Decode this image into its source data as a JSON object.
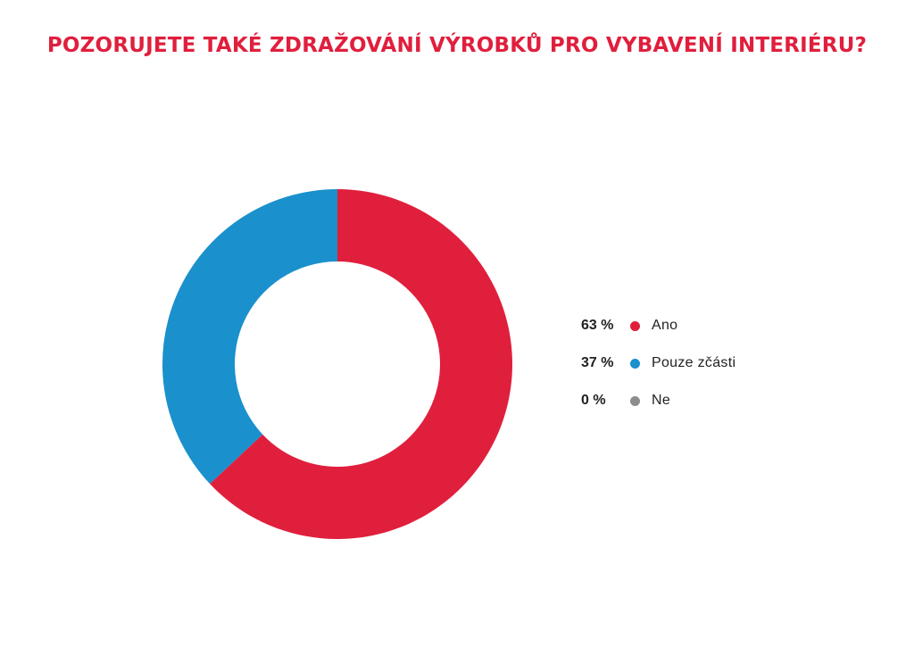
{
  "chart_data": {
    "type": "pie",
    "title": "POZORUJETE TAKÉ ZDRAŽOVÁNÍ VÝROBKŮ PRO VYBAVENÍ INTERIÉRU?",
    "donut": true,
    "legend_position": "right",
    "slices": [
      {
        "label": "Ano",
        "value": 63,
        "display": "63 %",
        "color": "#e01f3d"
      },
      {
        "label": "Pouze zčásti",
        "value": 37,
        "display": "37 %",
        "color": "#1a90cc"
      },
      {
        "label": "Ne",
        "value": 0,
        "display": "0 %",
        "color": "#8c8c8c"
      }
    ]
  }
}
